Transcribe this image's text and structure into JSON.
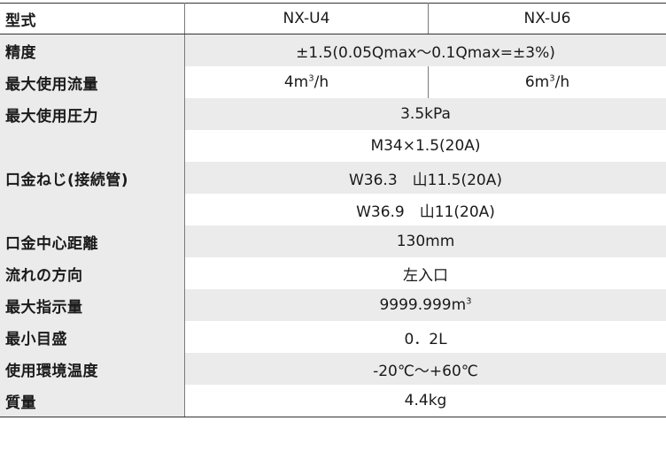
{
  "rows": {
    "model": {
      "label": "型式",
      "a": "NX-U4",
      "b": "NX-U6"
    },
    "accuracy": {
      "label": "精度",
      "value": "±1.5(0.05Qmax～0.1Qmax=±3%)"
    },
    "max_flow": {
      "label": "最大使用流量",
      "a_base": "4m",
      "a_sup": "3",
      "a_tail": "/h",
      "b_base": "6m",
      "b_sup": "3",
      "b_tail": "/h"
    },
    "max_pressure": {
      "label": "最大使用圧力",
      "value": "3.5kPa"
    },
    "thread": {
      "label": "口金ねじ(接続管)",
      "values": [
        "M34×1.5(20A)",
        "W36.3　山11.5(20A)",
        "W36.9　山11(20A)"
      ]
    },
    "center_distance": {
      "label": "口金中心距離",
      "value": "130mm"
    },
    "direction": {
      "label": "流れの方向",
      "value": "左入口"
    },
    "max_reading": {
      "label": "最大指示量",
      "base": "9999.999m",
      "sup": "3"
    },
    "min_scale": {
      "label": "最小目盛",
      "value": "0．2L"
    },
    "temperature": {
      "label": "使用環境温度",
      "value": "-20℃～+60℃"
    },
    "mass": {
      "label": "質量",
      "value": "4.4kg"
    }
  }
}
